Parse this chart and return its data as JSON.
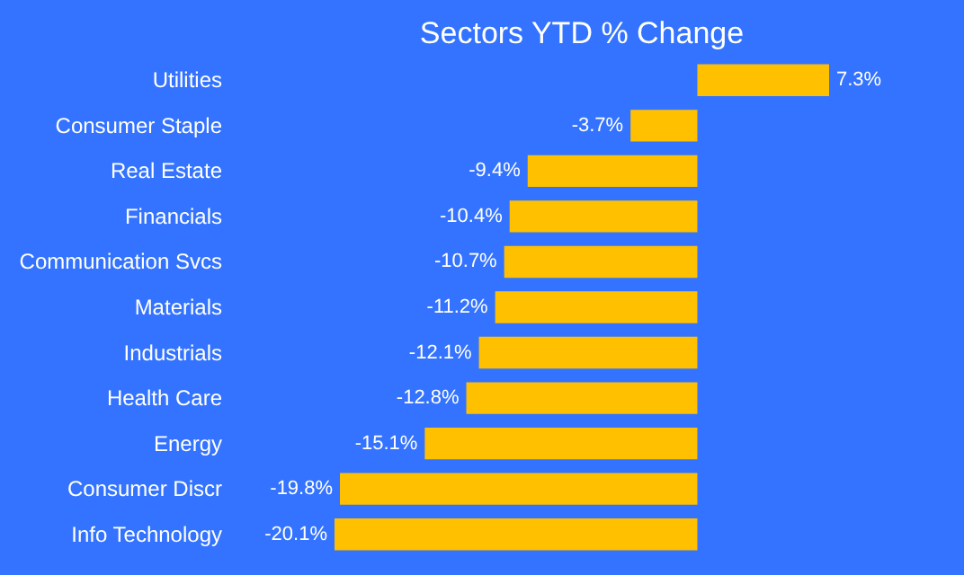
{
  "chart_data": {
    "type": "bar",
    "orientation": "horizontal",
    "title": "Sectors YTD % Change",
    "categories": [
      "Utilities",
      "Consumer Staple",
      "Real Estate",
      "Financials",
      "Communication Svcs",
      "Materials",
      "Industrials",
      "Health Care",
      "Energy",
      "Consumer Discr",
      "Info Technology"
    ],
    "values": [
      7.3,
      -3.7,
      -9.4,
      -10.4,
      -10.7,
      -11.2,
      -12.1,
      -12.8,
      -15.1,
      -19.8,
      -20.1
    ],
    "value_labels": [
      "7.3%",
      "-3.7%",
      "-9.4%",
      "-10.4%",
      "-10.7%",
      "-11.2%",
      "-12.1%",
      "-12.8%",
      "-15.1%",
      "-19.8%",
      "-20.1%"
    ],
    "color": "#ffc000",
    "tick_labels": "y"
  }
}
